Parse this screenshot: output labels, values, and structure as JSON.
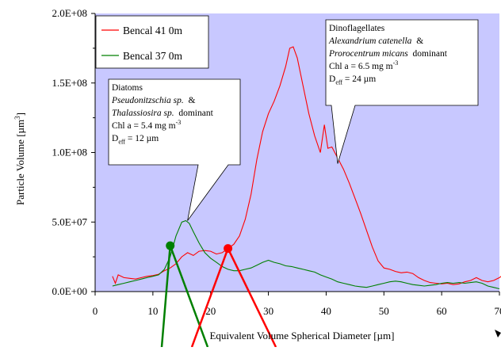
{
  "chart_data": {
    "type": "line",
    "xlabel": "Equivalent Volume Spherical Diameter [µm]",
    "ylabel": "Particle Volume [µm³]",
    "ylabel_base": "Particle Volume [µm",
    "ylabel_sup": "3",
    "ylabel_end": "]",
    "xlim": [
      0,
      70
    ],
    "ylim": [
      0,
      200000000
    ],
    "x_ticks": [
      0,
      10,
      20,
      30,
      40,
      50,
      60,
      70
    ],
    "x_tick_labels": [
      "0",
      "10",
      "20",
      "30",
      "40",
      "50",
      "60",
      "70"
    ],
    "y_ticks": [
      0,
      50000000,
      100000000,
      150000000,
      200000000
    ],
    "y_tick_labels": [
      "0.0E+00",
      "5.0E+07",
      "1.0E+08",
      "1.5E+08",
      "2.0E+08"
    ],
    "grid": false,
    "legend_position": "top-left",
    "colors": {
      "background": "#c8c8ff",
      "bencal41": "#ff0000",
      "bencal37": "#008000"
    },
    "series": [
      {
        "name": "Bencal 41 0m",
        "color": "#ff0000",
        "points": [
          [
            3,
            11000000
          ],
          [
            3.5,
            6000000
          ],
          [
            4,
            12000000
          ],
          [
            5,
            10000000
          ],
          [
            6,
            9500000
          ],
          [
            7,
            9000000
          ],
          [
            8,
            10000000
          ],
          [
            9,
            11000000
          ],
          [
            10,
            11500000
          ],
          [
            11,
            12500000
          ],
          [
            12,
            15000000
          ],
          [
            13,
            17000000
          ],
          [
            14,
            20000000
          ],
          [
            15,
            25000000
          ],
          [
            16,
            28000000
          ],
          [
            17,
            26000000
          ],
          [
            18,
            29000000
          ],
          [
            19,
            29500000
          ],
          [
            20,
            29000000
          ],
          [
            21,
            27000000
          ],
          [
            22,
            28000000
          ],
          [
            23,
            31000000
          ],
          [
            24,
            34000000
          ],
          [
            25,
            40000000
          ],
          [
            26,
            52000000
          ],
          [
            27,
            70000000
          ],
          [
            28,
            95000000
          ],
          [
            29,
            115000000
          ],
          [
            30,
            128000000
          ],
          [
            31,
            137000000
          ],
          [
            32,
            148000000
          ],
          [
            33,
            162000000
          ],
          [
            33.7,
            175000000
          ],
          [
            34.3,
            176000000
          ],
          [
            35,
            168000000
          ],
          [
            36,
            148000000
          ],
          [
            37,
            128000000
          ],
          [
            38,
            112000000
          ],
          [
            39,
            100000000
          ],
          [
            39.7,
            120000000
          ],
          [
            40.3,
            103000000
          ],
          [
            41,
            104000000
          ],
          [
            42,
            96000000
          ],
          [
            43,
            88000000
          ],
          [
            44,
            78000000
          ],
          [
            45,
            67000000
          ],
          [
            46,
            56000000
          ],
          [
            47,
            44000000
          ],
          [
            48,
            32000000
          ],
          [
            49,
            22000000
          ],
          [
            50,
            17000000
          ],
          [
            51,
            16000000
          ],
          [
            52,
            14500000
          ],
          [
            53,
            13500000
          ],
          [
            54,
            14000000
          ],
          [
            55,
            13000000
          ],
          [
            56,
            10000000
          ],
          [
            57,
            8000000
          ],
          [
            58,
            6500000
          ],
          [
            59,
            6000000
          ],
          [
            60,
            5500000
          ],
          [
            61,
            6000000
          ],
          [
            62,
            5000000
          ],
          [
            63,
            5500000
          ],
          [
            64,
            7000000
          ],
          [
            65,
            8000000
          ],
          [
            66,
            10000000
          ],
          [
            67,
            8000000
          ],
          [
            68,
            7000000
          ],
          [
            69,
            8000000
          ],
          [
            70,
            10000000
          ],
          [
            71,
            13000000
          ]
        ]
      },
      {
        "name": "Bencal 37 0m",
        "color": "#008000",
        "points": [
          [
            3,
            4000000
          ],
          [
            4,
            5000000
          ],
          [
            5,
            6000000
          ],
          [
            6,
            7000000
          ],
          [
            7,
            8000000
          ],
          [
            8,
            9000000
          ],
          [
            9,
            10000000
          ],
          [
            10,
            11000000
          ],
          [
            11,
            12000000
          ],
          [
            12,
            16000000
          ],
          [
            13,
            25000000
          ],
          [
            14,
            40000000
          ],
          [
            15,
            50000000
          ],
          [
            15.7,
            51000000
          ],
          [
            16.3,
            49000000
          ],
          [
            17,
            43000000
          ],
          [
            18,
            35000000
          ],
          [
            19,
            28000000
          ],
          [
            20,
            24000000
          ],
          [
            21,
            21000000
          ],
          [
            22,
            18000000
          ],
          [
            23,
            16000000
          ],
          [
            24,
            15000000
          ],
          [
            25,
            15000000
          ],
          [
            26,
            16000000
          ],
          [
            27,
            17000000
          ],
          [
            28,
            19000000
          ],
          [
            29,
            21000000
          ],
          [
            30,
            22500000
          ],
          [
            31,
            21000000
          ],
          [
            32,
            20000000
          ],
          [
            33,
            18500000
          ],
          [
            34,
            18000000
          ],
          [
            35,
            17000000
          ],
          [
            36,
            16000000
          ],
          [
            37,
            15000000
          ],
          [
            38,
            14000000
          ],
          [
            39,
            12000000
          ],
          [
            40,
            10500000
          ],
          [
            41,
            9000000
          ],
          [
            42,
            7000000
          ],
          [
            43,
            6000000
          ],
          [
            44,
            5000000
          ],
          [
            45,
            4000000
          ],
          [
            46,
            3500000
          ],
          [
            47,
            3000000
          ],
          [
            48,
            4000000
          ],
          [
            49,
            5000000
          ],
          [
            50,
            6000000
          ],
          [
            51,
            7000000
          ],
          [
            52,
            7500000
          ],
          [
            53,
            7000000
          ],
          [
            54,
            6000000
          ],
          [
            55,
            5000000
          ],
          [
            56,
            4500000
          ],
          [
            57,
            4000000
          ],
          [
            58,
            4500000
          ],
          [
            59,
            5000000
          ],
          [
            60,
            6000000
          ],
          [
            61,
            6500000
          ],
          [
            62,
            6000000
          ],
          [
            63,
            6500000
          ],
          [
            64,
            6000000
          ],
          [
            65,
            6500000
          ],
          [
            66,
            7000000
          ],
          [
            67,
            6000000
          ],
          [
            68,
            4000000
          ],
          [
            69,
            3000000
          ],
          [
            70,
            2000000
          ]
        ]
      }
    ],
    "markers": [
      {
        "name": "green-marker",
        "color": "#008000",
        "x": 13,
        "y": 33000000
      },
      {
        "name": "red-marker",
        "color": "#ff0000",
        "x": 23,
        "y": 31000000
      }
    ],
    "annotations": {
      "diatoms": {
        "title": "Diatoms",
        "species1": "Pseudonitzschia sp.",
        "amp": "&",
        "species2": "Thalassiosira sp.",
        "dominant": "dominant",
        "chl_prefix": "Chl a = 5.4 mg m",
        "chl_sup": "-3",
        "deff_prefix": "D",
        "deff_sub": "eff",
        "deff_value": " = 12 µm",
        "pointer": {
          "x": 16,
          "y": 51000000
        }
      },
      "dinoflagellates": {
        "title": "Dinoflagellates",
        "species1": "Alexandrium catenella",
        "amp": "&",
        "species2": "Prorocentrum micans",
        "dominant": "dominant",
        "chl_prefix": "Chl a = 6.5 mg m",
        "chl_sup": "-3",
        "deff_prefix": "D",
        "deff_sub": "eff",
        "deff_value": " = 24 µm",
        "pointer": {
          "x": 42,
          "y": 92000000
        }
      }
    }
  }
}
